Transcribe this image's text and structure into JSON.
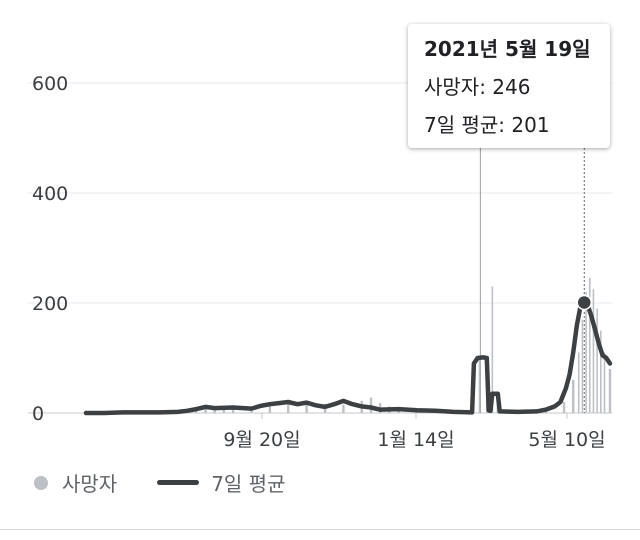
{
  "chart_data": {
    "type": "bar+line",
    "ylim": [
      0,
      600
    ],
    "y_ticks": [
      "0",
      "200",
      "400",
      "600"
    ],
    "x_tick_labels": [
      "9월 20일",
      "1월 14일",
      "5월 10일"
    ],
    "grid": "horizontal",
    "legend_placement": "bottom-left",
    "series": [
      {
        "name": "사망자",
        "kind": "bar",
        "color": "#bdc1c6",
        "values": [
          {
            "x": 0,
            "y": 1
          },
          {
            "x": 10,
            "y": 2
          },
          {
            "x": 20,
            "y": 2
          },
          {
            "x": 30,
            "y": 2
          },
          {
            "x": 40,
            "y": 2
          },
          {
            "x": 50,
            "y": 3
          },
          {
            "x": 60,
            "y": 5
          },
          {
            "x": 65,
            "y": 8
          },
          {
            "x": 70,
            "y": 12
          },
          {
            "x": 75,
            "y": 9
          },
          {
            "x": 80,
            "y": 10
          },
          {
            "x": 90,
            "y": 8
          },
          {
            "x": 100,
            "y": 14
          },
          {
            "x": 110,
            "y": 18
          },
          {
            "x": 120,
            "y": 20
          },
          {
            "x": 130,
            "y": 17
          },
          {
            "x": 140,
            "y": 15
          },
          {
            "x": 150,
            "y": 22
          },
          {
            "x": 155,
            "y": 28
          },
          {
            "x": 160,
            "y": 18
          },
          {
            "x": 165,
            "y": 12
          },
          {
            "x": 170,
            "y": 8
          },
          {
            "x": 180,
            "y": 6
          },
          {
            "x": 190,
            "y": 5
          },
          {
            "x": 200,
            "y": 3
          },
          {
            "x": 210,
            "y": 2
          },
          {
            "x": 214,
            "y": 100
          },
          {
            "x": 218,
            "y": 100
          },
          {
            "x": 221,
            "y": 230
          },
          {
            "x": 224,
            "y": 20
          },
          {
            "x": 228,
            "y": 5
          },
          {
            "x": 240,
            "y": 3
          },
          {
            "x": 250,
            "y": 6
          },
          {
            "x": 260,
            "y": 20
          },
          {
            "x": 265,
            "y": 60
          },
          {
            "x": 268,
            "y": 110
          },
          {
            "x": 270,
            "y": 170
          },
          {
            "x": 272,
            "y": 220
          },
          {
            "x": 274,
            "y": 246
          },
          {
            "x": 276,
            "y": 225
          },
          {
            "x": 278,
            "y": 190
          },
          {
            "x": 280,
            "y": 150
          },
          {
            "x": 282,
            "y": 110
          },
          {
            "x": 285,
            "y": 80
          }
        ]
      },
      {
        "name": "7일 평균",
        "kind": "line",
        "color": "#3c4043",
        "values": [
          {
            "x": 0,
            "y": 0
          },
          {
            "x": 10,
            "y": 0
          },
          {
            "x": 20,
            "y": 1
          },
          {
            "x": 30,
            "y": 1
          },
          {
            "x": 40,
            "y": 1
          },
          {
            "x": 50,
            "y": 2
          },
          {
            "x": 55,
            "y": 4
          },
          {
            "x": 60,
            "y": 7
          },
          {
            "x": 65,
            "y": 11
          },
          {
            "x": 70,
            "y": 9
          },
          {
            "x": 80,
            "y": 10
          },
          {
            "x": 90,
            "y": 8
          },
          {
            "x": 95,
            "y": 13
          },
          {
            "x": 100,
            "y": 16
          },
          {
            "x": 105,
            "y": 18
          },
          {
            "x": 110,
            "y": 20
          },
          {
            "x": 115,
            "y": 16
          },
          {
            "x": 120,
            "y": 19
          },
          {
            "x": 125,
            "y": 14
          },
          {
            "x": 130,
            "y": 11
          },
          {
            "x": 135,
            "y": 16
          },
          {
            "x": 140,
            "y": 22
          },
          {
            "x": 145,
            "y": 16
          },
          {
            "x": 150,
            "y": 12
          },
          {
            "x": 155,
            "y": 10
          },
          {
            "x": 160,
            "y": 6
          },
          {
            "x": 170,
            "y": 7
          },
          {
            "x": 180,
            "y": 5
          },
          {
            "x": 190,
            "y": 4
          },
          {
            "x": 200,
            "y": 2
          },
          {
            "x": 210,
            "y": 1
          },
          {
            "x": 211,
            "y": 90
          },
          {
            "x": 213,
            "y": 100
          },
          {
            "x": 216,
            "y": 101
          },
          {
            "x": 218,
            "y": 100
          },
          {
            "x": 219,
            "y": 5
          },
          {
            "x": 220,
            "y": 4
          },
          {
            "x": 221,
            "y": 35
          },
          {
            "x": 224,
            "y": 35
          },
          {
            "x": 225,
            "y": 3
          },
          {
            "x": 235,
            "y": 2
          },
          {
            "x": 245,
            "y": 3
          },
          {
            "x": 250,
            "y": 6
          },
          {
            "x": 255,
            "y": 12
          },
          {
            "x": 258,
            "y": 20
          },
          {
            "x": 261,
            "y": 45
          },
          {
            "x": 263,
            "y": 70
          },
          {
            "x": 265,
            "y": 110
          },
          {
            "x": 267,
            "y": 160
          },
          {
            "x": 269,
            "y": 195
          },
          {
            "x": 271,
            "y": 201
          },
          {
            "x": 273,
            "y": 195
          },
          {
            "x": 275,
            "y": 175
          },
          {
            "x": 277,
            "y": 150
          },
          {
            "x": 279,
            "y": 125
          },
          {
            "x": 281,
            "y": 105
          },
          {
            "x": 283,
            "y": 100
          },
          {
            "x": 285,
            "y": 90
          }
        ]
      }
    ],
    "highlight": {
      "x": 271,
      "y": 201
    }
  },
  "tooltip": {
    "date": "2021년 5월 19일",
    "deaths_label": "사망자: ",
    "deaths_value": "246",
    "avg_label": "7일 평균: ",
    "avg_value": "201"
  },
  "legend": {
    "bar_label": "사망자",
    "line_label": "7일 평균"
  }
}
